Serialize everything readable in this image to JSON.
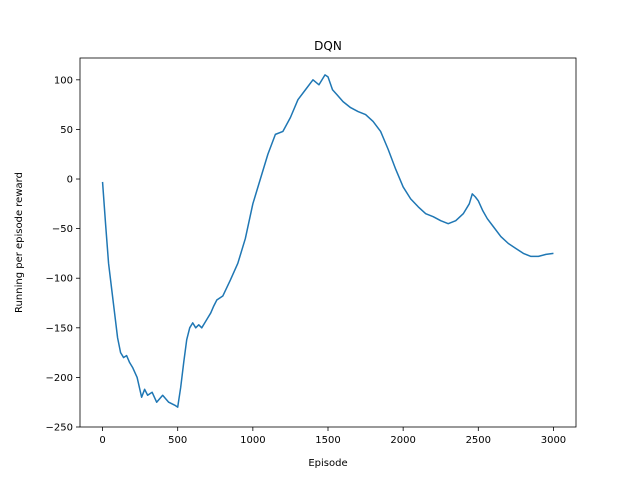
{
  "chart_data": {
    "type": "line",
    "title": "DQN",
    "xlabel": "Episode",
    "ylabel": "Running per episode reward",
    "xlim": [
      -150,
      3150
    ],
    "ylim": [
      -250,
      122
    ],
    "xticks": [
      0,
      500,
      1000,
      1500,
      2000,
      2500,
      3000
    ],
    "yticks": [
      -250,
      -200,
      -150,
      -100,
      -50,
      0,
      50,
      100
    ],
    "grid": false,
    "series": [
      {
        "color": "#1f77b4",
        "x": [
          0,
          20,
          40,
          60,
          80,
          100,
          120,
          140,
          160,
          180,
          200,
          230,
          260,
          280,
          300,
          330,
          360,
          400,
          440,
          480,
          500,
          520,
          540,
          560,
          580,
          600,
          620,
          640,
          660,
          680,
          700,
          720,
          740,
          760,
          800,
          850,
          900,
          950,
          1000,
          1050,
          1100,
          1150,
          1200,
          1250,
          1300,
          1350,
          1400,
          1440,
          1480,
          1500,
          1530,
          1560,
          1600,
          1650,
          1700,
          1750,
          1800,
          1850,
          1900,
          1950,
          2000,
          2050,
          2100,
          2150,
          2200,
          2250,
          2300,
          2350,
          2400,
          2440,
          2460,
          2480,
          2500,
          2530,
          2560,
          2600,
          2650,
          2700,
          2750,
          2800,
          2850,
          2900,
          2950,
          3000
        ],
        "y": [
          -3,
          -45,
          -85,
          -110,
          -135,
          -160,
          -175,
          -180,
          -178,
          -185,
          -190,
          -200,
          -220,
          -212,
          -218,
          -215,
          -225,
          -218,
          -225,
          -228,
          -230,
          -210,
          -185,
          -162,
          -150,
          -145,
          -150,
          -147,
          -150,
          -145,
          -140,
          -135,
          -128,
          -122,
          -118,
          -102,
          -85,
          -60,
          -25,
          0,
          25,
          45,
          48,
          62,
          80,
          90,
          100,
          95,
          105,
          103,
          90,
          85,
          78,
          72,
          68,
          65,
          58,
          48,
          30,
          10,
          -8,
          -20,
          -28,
          -35,
          -38,
          -42,
          -45,
          -42,
          -35,
          -25,
          -15,
          -18,
          -22,
          -32,
          -40,
          -48,
          -58,
          -65,
          -70,
          -75,
          -78,
          -78,
          -76,
          -75
        ]
      }
    ]
  }
}
